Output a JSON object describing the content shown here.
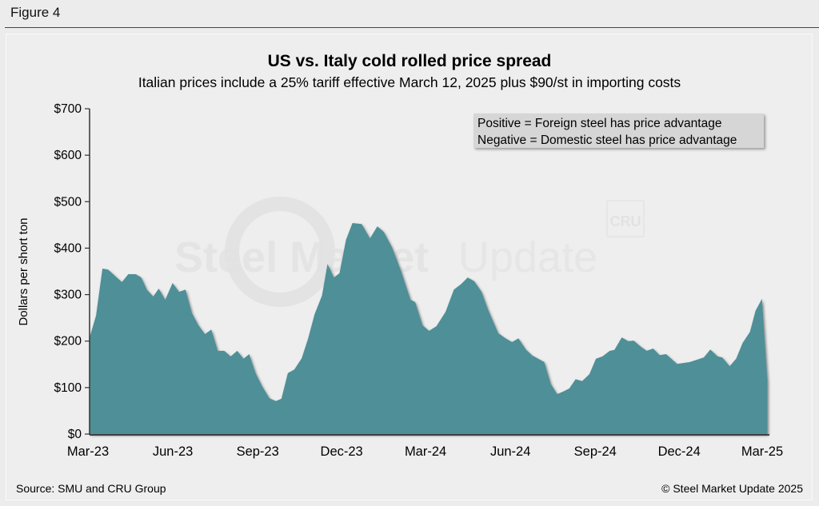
{
  "figure_label": "Figure 4",
  "source": "Source: SMU and CRU Group",
  "copyright": "© Steel Market Update 2025",
  "watermark": {
    "brand": "Steel Market Update",
    "brand_bold": "Steel Market",
    "brand_light": "Update",
    "badge": "CRU"
  },
  "colors": {
    "area": "#508f97",
    "background": "#eeeeee",
    "axis": "#333333",
    "legend_box": "#d6d6d6"
  },
  "chart_data": {
    "type": "area",
    "title": "US vs. Italy cold rolled price spread",
    "subtitle": "Italian prices include a 25% tariff effective March 12, 2025 plus $90/st in importing costs",
    "xlabel": "",
    "ylabel": "Dollars per short ton",
    "ylim": [
      0,
      700
    ],
    "xlim": [
      "2023-03-01",
      "2025-03-05"
    ],
    "grid": false,
    "yticks": [
      "$0",
      "$100",
      "$200",
      "$300",
      "$400",
      "$500",
      "$600",
      "$700"
    ],
    "ytick_values": [
      0,
      100,
      200,
      300,
      400,
      500,
      600,
      700
    ],
    "xticks": [
      "Mar-23",
      "Jun-23",
      "Sep-23",
      "Dec-23",
      "Mar-24",
      "Jun-24",
      "Sep-24",
      "Dec-24",
      "Mar-25"
    ],
    "xtick_dates": [
      "2023-03-01",
      "2023-06-01",
      "2023-09-01",
      "2023-12-01",
      "2024-03-01",
      "2024-06-01",
      "2024-09-01",
      "2024-12-01",
      "2025-03-01"
    ],
    "annotation": [
      "Positive = Foreign steel has price advantage",
      "Negative = Domestic steel has price advantage"
    ],
    "x": [
      "2023-03-01",
      "2023-03-08",
      "2023-03-15",
      "2023-03-21",
      "2023-04-05",
      "2023-04-12",
      "2023-04-20",
      "2023-04-26",
      "2023-05-02",
      "2023-05-09",
      "2023-05-15",
      "2023-05-22",
      "2023-05-30",
      "2023-06-06",
      "2023-06-13",
      "2023-06-20",
      "2023-06-27",
      "2023-07-04",
      "2023-07-11",
      "2023-07-18",
      "2023-07-25",
      "2023-08-01",
      "2023-08-08",
      "2023-08-15",
      "2023-08-21",
      "2023-08-28",
      "2023-09-04",
      "2023-09-12",
      "2023-09-19",
      "2023-09-25",
      "2023-10-02",
      "2023-10-09",
      "2023-10-17",
      "2023-10-24",
      "2023-10-31",
      "2023-11-08",
      "2023-11-14",
      "2023-11-21",
      "2023-11-27",
      "2023-12-04",
      "2023-12-11",
      "2023-12-21",
      "2023-12-30",
      "2024-01-07",
      "2024-01-14",
      "2024-01-23",
      "2024-02-02",
      "2024-02-12",
      "2024-02-17",
      "2024-02-25",
      "2024-03-03",
      "2024-03-11",
      "2024-03-21",
      "2024-03-30",
      "2024-04-07",
      "2024-04-14",
      "2024-04-21",
      "2024-04-29",
      "2024-05-06",
      "2024-05-17",
      "2024-05-25",
      "2024-06-01",
      "2024-06-08",
      "2024-06-16",
      "2024-06-23",
      "2024-07-06",
      "2024-07-13",
      "2024-07-20",
      "2024-07-27",
      "2024-08-02",
      "2024-08-09",
      "2024-08-16",
      "2024-08-24",
      "2024-08-31",
      "2024-09-07",
      "2024-09-15",
      "2024-09-20",
      "2024-09-28",
      "2024-10-05",
      "2024-10-11",
      "2024-10-18",
      "2024-10-25",
      "2024-11-01",
      "2024-11-08",
      "2024-11-15",
      "2024-11-27",
      "2024-12-11",
      "2024-12-26",
      "2025-01-02",
      "2025-01-10",
      "2025-01-15",
      "2025-01-23",
      "2025-01-30",
      "2025-02-06",
      "2025-02-14",
      "2025-02-20",
      "2025-02-27",
      "2025-03-05"
    ],
    "values": [
      208,
      255,
      356,
      354,
      327,
      344,
      344,
      337,
      311,
      296,
      313,
      289,
      325,
      306,
      311,
      260,
      234,
      215,
      225,
      179,
      179,
      167,
      179,
      162,
      172,
      131,
      103,
      77,
      71,
      76,
      131,
      139,
      163,
      206,
      258,
      298,
      366,
      337,
      346,
      418,
      454,
      452,
      421,
      447,
      435,
      401,
      349,
      289,
      284,
      234,
      222,
      232,
      263,
      311,
      323,
      337,
      329,
      306,
      268,
      217,
      206,
      198,
      206,
      182,
      169,
      155,
      108,
      86,
      92,
      98,
      118,
      114,
      129,
      162,
      167,
      179,
      181,
      208,
      200,
      201,
      189,
      179,
      184,
      170,
      172,
      151,
      155,
      165,
      182,
      167,
      165,
      146,
      162,
      196,
      220,
      265,
      291,
      114
    ]
  }
}
